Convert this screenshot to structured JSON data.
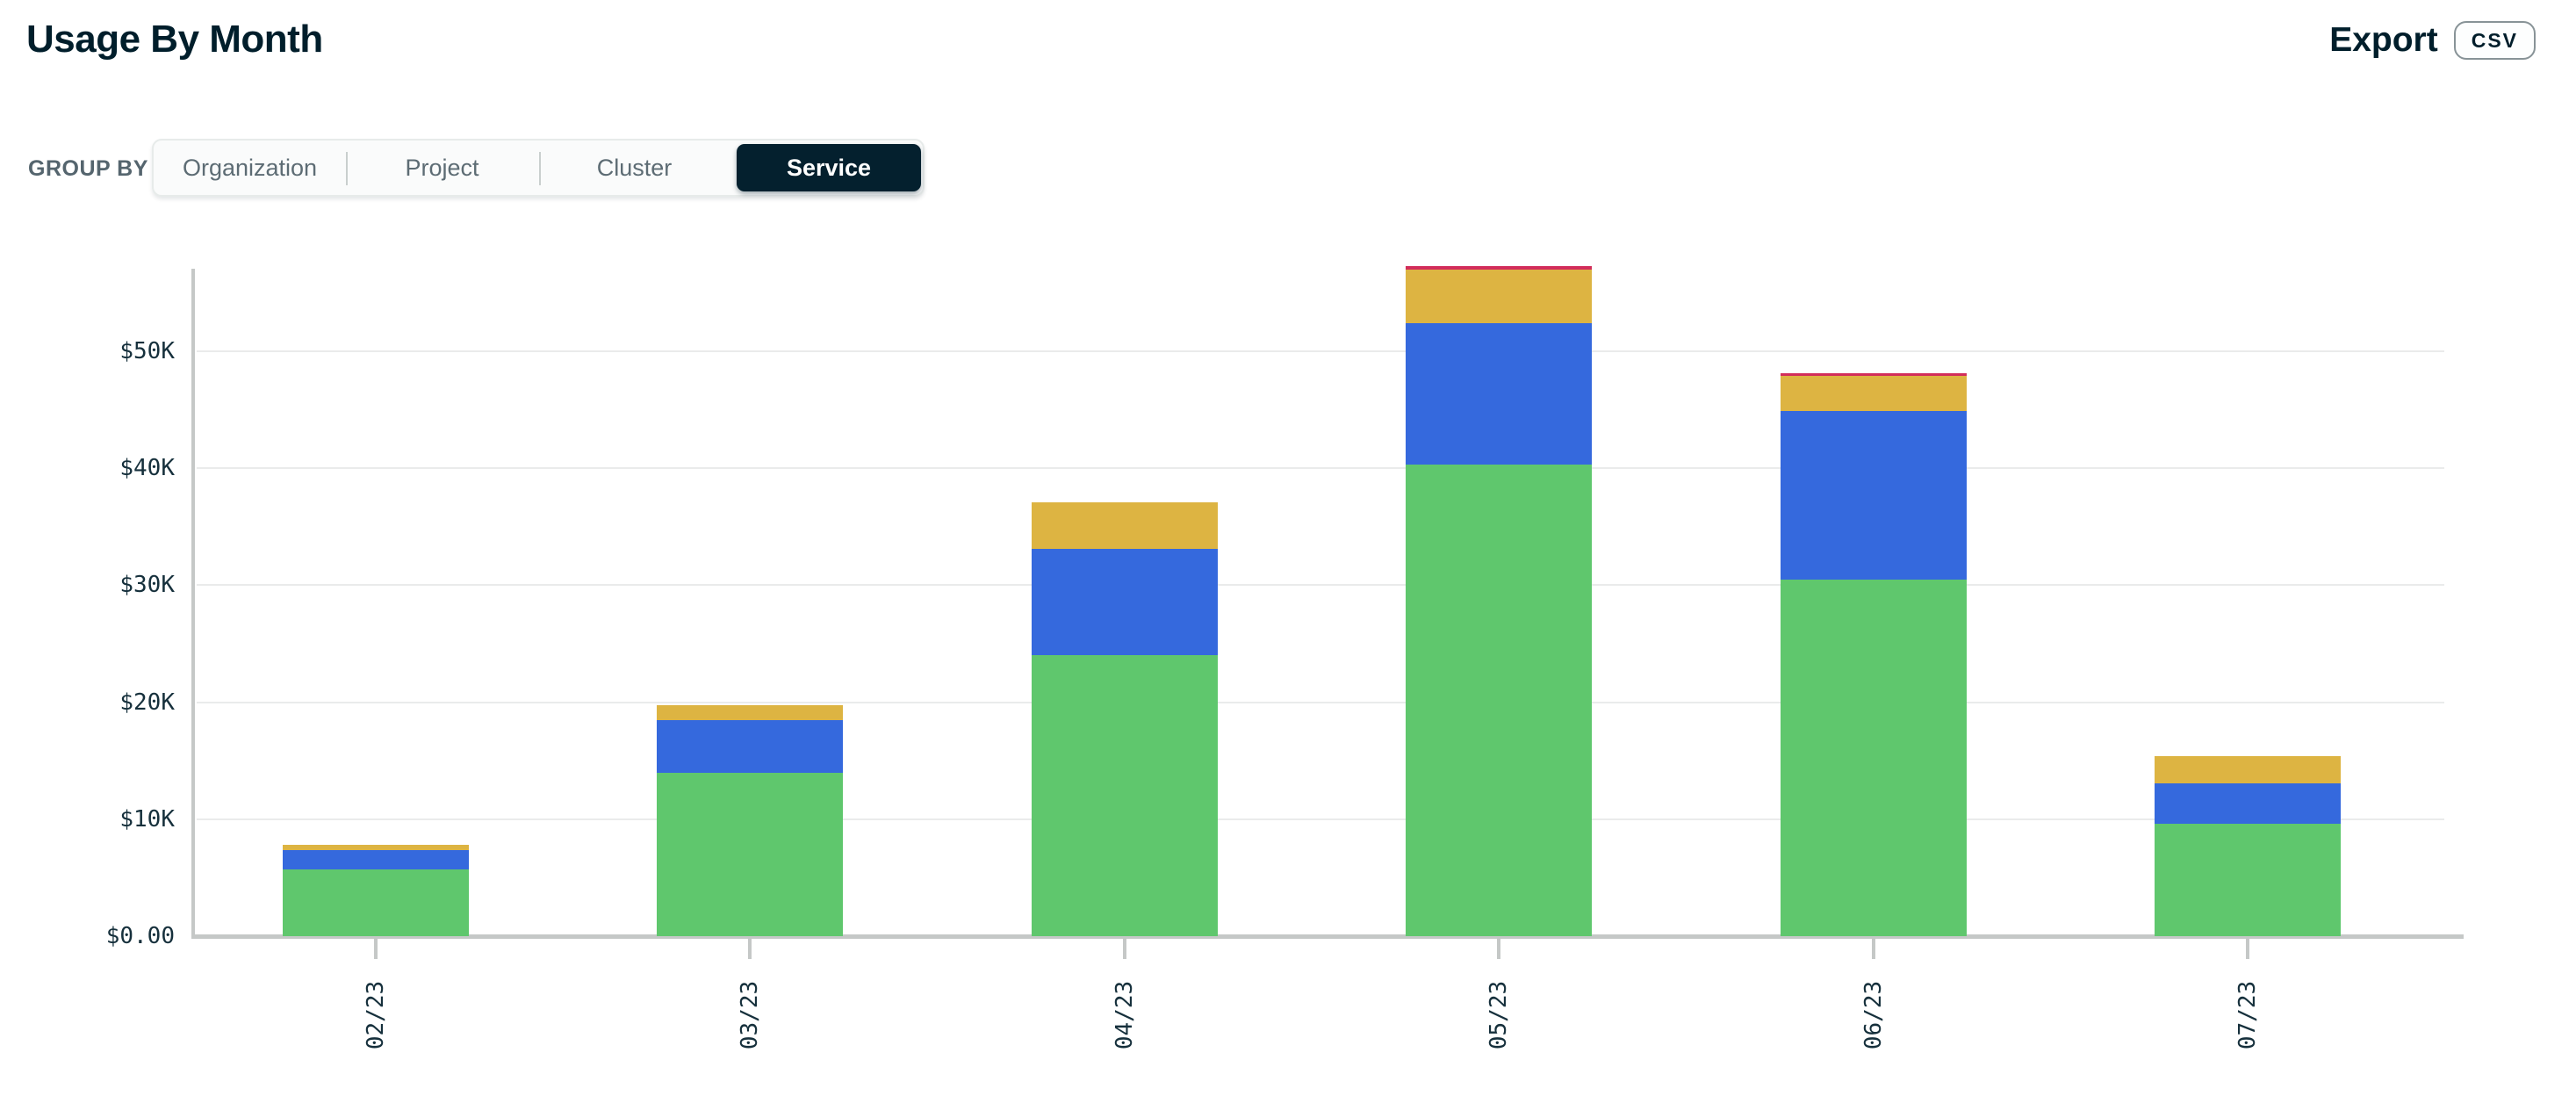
{
  "header": {
    "title": "Usage By Month",
    "export_label": "Export",
    "csv_button": "CSV"
  },
  "group_by": {
    "label": "GROUP BY",
    "options": [
      "Organization",
      "Project",
      "Cluster",
      "Service"
    ],
    "selected": "Service"
  },
  "colors": {
    "accent_dark": "#001E2B",
    "axis_gray": "#C5C8C7",
    "grid_gray": "#EAEBEB"
  },
  "chart_data": {
    "type": "bar",
    "stacked": true,
    "unit": "USD (thousands)",
    "categories": [
      "02/23",
      "03/23",
      "04/23",
      "05/23",
      "06/23",
      "07/23"
    ],
    "series": [
      {
        "name": "green-service",
        "color": "#5FC76D",
        "values": [
          5.7,
          14.0,
          24.0,
          40.3,
          30.5,
          9.6
        ]
      },
      {
        "name": "blue-service",
        "color": "#3569DD",
        "values": [
          1.65,
          4.5,
          9.1,
          12.1,
          14.4,
          3.5
        ]
      },
      {
        "name": "gold-service",
        "color": "#DDB442",
        "values": [
          0.45,
          1.25,
          4.0,
          4.6,
          3.0,
          2.3
        ]
      },
      {
        "name": "red-service",
        "color": "#D22D5A",
        "values": [
          0,
          0,
          0,
          0.25,
          0.25,
          0
        ]
      }
    ],
    "totals": [
      7.8,
      19.75,
      37.1,
      57.25,
      48.15,
      15.4
    ],
    "y_ticks": [
      "$0.00",
      "$10K",
      "$20K",
      "$30K",
      "$40K",
      "$50K"
    ],
    "ylim": [
      0,
      57.5
    ],
    "grid": "horizontal",
    "legend": "none",
    "x_axis_label_rotation": -90
  }
}
